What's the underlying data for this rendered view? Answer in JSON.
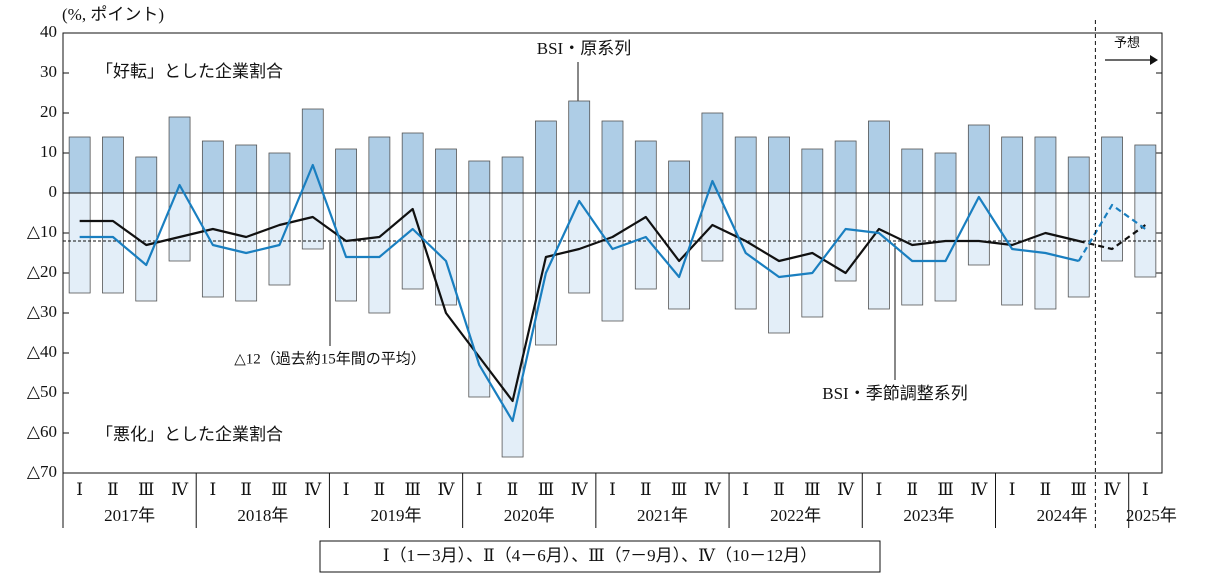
{
  "chart_data": {
    "type": "bar_line",
    "unit_label": "(%, ポイント)",
    "categories": [
      "Ⅰ",
      "Ⅱ",
      "Ⅲ",
      "Ⅳ",
      "Ⅰ",
      "Ⅱ",
      "Ⅲ",
      "Ⅳ",
      "Ⅰ",
      "Ⅱ",
      "Ⅲ",
      "Ⅳ",
      "Ⅰ",
      "Ⅱ",
      "Ⅲ",
      "Ⅳ",
      "Ⅰ",
      "Ⅱ",
      "Ⅲ",
      "Ⅳ",
      "Ⅰ",
      "Ⅱ",
      "Ⅲ",
      "Ⅳ",
      "Ⅰ",
      "Ⅱ",
      "Ⅲ",
      "Ⅳ",
      "Ⅰ",
      "Ⅱ",
      "Ⅲ",
      "Ⅳ",
      "Ⅰ"
    ],
    "year_groups": [
      {
        "label": "2017年",
        "quarters": 4
      },
      {
        "label": "2018年",
        "quarters": 4
      },
      {
        "label": "2019年",
        "quarters": 4
      },
      {
        "label": "2020年",
        "quarters": 4
      },
      {
        "label": "2021年",
        "quarters": 4
      },
      {
        "label": "2022年",
        "quarters": 4
      },
      {
        "label": "2023年",
        "quarters": 4
      },
      {
        "label": "2024年",
        "quarters": 4
      },
      {
        "label": "2025年",
        "quarters": 1
      }
    ],
    "forecast_start": 31,
    "forecast_label": "予想",
    "series": [
      {
        "name": "「好転」とした企業割合",
        "kind": "bar",
        "color": "#aecde6",
        "values": [
          14,
          14,
          9,
          19,
          13,
          12,
          10,
          21,
          11,
          14,
          15,
          11,
          8,
          9,
          18,
          23,
          18,
          13,
          8,
          20,
          14,
          14,
          11,
          13,
          18,
          11,
          10,
          17,
          14,
          14,
          9,
          14,
          12
        ]
      },
      {
        "name": "「悪化」とした企業割合",
        "kind": "bar",
        "color": "#e3eef8",
        "values": [
          -25,
          -25,
          -27,
          -17,
          -26,
          -27,
          -23,
          -14,
          -27,
          -30,
          -24,
          -28,
          -51,
          -66,
          -38,
          -25,
          -32,
          -24,
          -29,
          -17,
          -29,
          -35,
          -31,
          -22,
          -29,
          -28,
          -27,
          -18,
          -28,
          -29,
          -26,
          -17,
          -21
        ]
      },
      {
        "name": "BSI・原系列",
        "kind": "line",
        "color": "#111111",
        "values": [
          -7,
          -7,
          -13,
          -11,
          -9,
          -11,
          -8,
          -6,
          -12,
          -11,
          -4,
          -30,
          -41,
          -52,
          -16,
          -14,
          -11,
          -6,
          -17,
          -8,
          -12,
          -17,
          -15,
          -20,
          -9,
          -13,
          -12,
          -12,
          -13,
          -10,
          -12,
          -14,
          -8
        ]
      },
      {
        "name": "BSI・季節調整系列",
        "kind": "line",
        "color": "#1a7fc0",
        "values": [
          -11,
          -11,
          -18,
          2,
          -13,
          -15,
          -13,
          7,
          -16,
          -16,
          -9,
          -17,
          -43,
          -57,
          -20,
          -2,
          -14,
          -11,
          -21,
          3,
          -15,
          -21,
          -20,
          -9,
          -10,
          -17,
          -17,
          -1,
          -14,
          -15,
          -17,
          -3,
          -9
        ]
      }
    ],
    "reference_line": {
      "value": -12,
      "label": "△12（過去約15年間の平均）"
    },
    "ylim": [
      -70,
      40
    ],
    "yticks": [
      40,
      30,
      20,
      10,
      0,
      {
        "value": -10,
        "label": "△10"
      },
      {
        "value": -20,
        "label": "△20"
      },
      {
        "value": -30,
        "label": "△30"
      },
      {
        "value": -40,
        "label": "△40"
      },
      {
        "value": -50,
        "label": "△50"
      },
      {
        "value": -60,
        "label": "△60"
      },
      {
        "value": -70,
        "label": "△70"
      }
    ],
    "footnote": "Ⅰ（1－3月）、Ⅱ（4－6月）、Ⅲ（7－9月）、Ⅳ（10－12月）"
  }
}
